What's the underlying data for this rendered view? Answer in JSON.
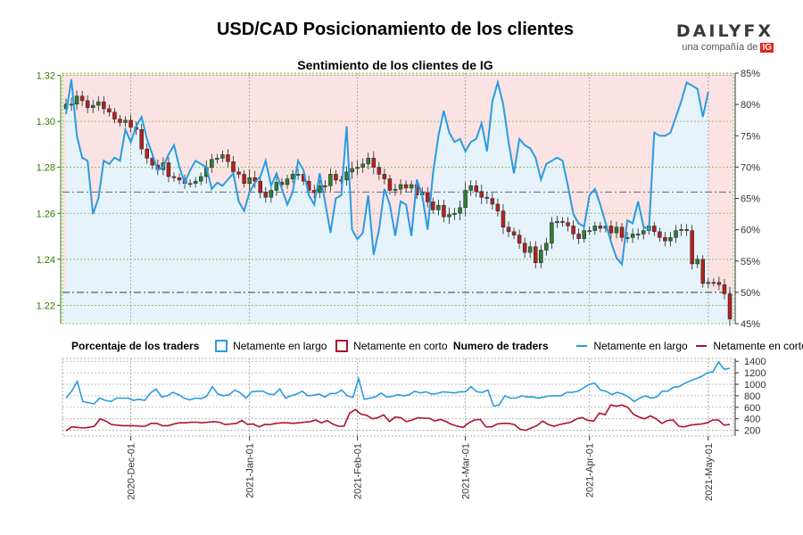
{
  "header": {
    "title": "USD/CAD Posicionamiento de los clientes",
    "subtitle": "Sentimiento de los clientes de IG",
    "brand": "DAILYFX",
    "brand_tagline": "una compañía de",
    "brand_ig": "IG"
  },
  "legend": {
    "pct_title": "Porcentaje de los traders",
    "pct_long": "Netamente en largo",
    "pct_short": "Netamente en corto",
    "num_title": "Numero de traders",
    "num_long": "Netamente en largo",
    "num_short": "Netamente en corto"
  },
  "colors": {
    "up": "#2e7d32",
    "down": "#b22222",
    "long": "#2b9be0",
    "short": "#b0102e",
    "long_fill": "#e6f3fb",
    "short_fill": "#fbe3e4",
    "axis_price": "#2e7d00"
  },
  "chart_data": [
    {
      "type": "candlestick",
      "title": "Sentimiento de los clientes de IG",
      "ylabel": "",
      "ylim": [
        1.212,
        1.321
      ],
      "yticks": [
        "1.32",
        "1.30",
        "1.28",
        "1.26",
        "1.24",
        "1.22"
      ],
      "dates": [
        "2020-11-13",
        "2020-11-16",
        "2020-11-17",
        "2020-11-18",
        "2020-11-19",
        "2020-11-20",
        "2020-11-23",
        "2020-11-24",
        "2020-11-25",
        "2020-11-26",
        "2020-11-27",
        "2020-11-30",
        "2020-12-01",
        "2020-12-02",
        "2020-12-03",
        "2020-12-04",
        "2020-12-07",
        "2020-12-08",
        "2020-12-09",
        "2020-12-10",
        "2020-12-11",
        "2020-12-14",
        "2020-12-15",
        "2020-12-16",
        "2020-12-17",
        "2020-12-18",
        "2020-12-21",
        "2020-12-22",
        "2020-12-23",
        "2020-12-24",
        "2020-12-28",
        "2020-12-29",
        "2020-12-30",
        "2020-12-31",
        "2021-01-04",
        "2021-01-05",
        "2021-01-06",
        "2021-01-07",
        "2021-01-08",
        "2021-01-11",
        "2021-01-12",
        "2021-01-13",
        "2021-01-14",
        "2021-01-15",
        "2021-01-18",
        "2021-01-19",
        "2021-01-20",
        "2021-01-21",
        "2021-01-22",
        "2021-01-25",
        "2021-01-26",
        "2021-01-27",
        "2021-01-28",
        "2021-01-29",
        "2021-02-01",
        "2021-02-02",
        "2021-02-03",
        "2021-02-04",
        "2021-02-05",
        "2021-02-08",
        "2021-02-09",
        "2021-02-10",
        "2021-02-11",
        "2021-02-12",
        "2021-02-15",
        "2021-02-16",
        "2021-02-17",
        "2021-02-18",
        "2021-02-19",
        "2021-02-22",
        "2021-02-23",
        "2021-02-24",
        "2021-02-25",
        "2021-02-26",
        "2021-03-01",
        "2021-03-02",
        "2021-03-03",
        "2021-03-04",
        "2021-03-05",
        "2021-03-08",
        "2021-03-09",
        "2021-03-10",
        "2021-03-11",
        "2021-03-12",
        "2021-03-15",
        "2021-03-16",
        "2021-03-17",
        "2021-03-18",
        "2021-03-19",
        "2021-03-22",
        "2021-03-23",
        "2021-03-24",
        "2021-03-25",
        "2021-03-26",
        "2021-03-29",
        "2021-03-30",
        "2021-03-31",
        "2021-04-01",
        "2021-04-02",
        "2021-04-05",
        "2021-04-06",
        "2021-04-07",
        "2021-04-08",
        "2021-04-09",
        "2021-04-12",
        "2021-04-13",
        "2021-04-14",
        "2021-04-15",
        "2021-04-16",
        "2021-04-19",
        "2021-04-20",
        "2021-04-21",
        "2021-04-22",
        "2021-04-23",
        "2021-04-26",
        "2021-04-27",
        "2021-04-28",
        "2021-04-29",
        "2021-04-30",
        "2021-05-03",
        "2021-05-04",
        "2021-05-05",
        "2021-05-06",
        "2021-05-07"
      ],
      "close": [
        1.3075,
        1.3075,
        1.311,
        1.309,
        1.306,
        1.307,
        1.3085,
        1.3055,
        1.304,
        1.301,
        1.2995,
        1.3005,
        1.2975,
        1.2965,
        1.288,
        1.284,
        1.281,
        1.279,
        1.282,
        1.276,
        1.2755,
        1.2745,
        1.273,
        1.273,
        1.274,
        1.276,
        1.28,
        1.2835,
        1.284,
        1.2855,
        1.2825,
        1.278,
        1.277,
        1.273,
        1.2755,
        1.274,
        1.269,
        1.267,
        1.27,
        1.2735,
        1.2725,
        1.275,
        1.277,
        1.277,
        1.274,
        1.27,
        1.269,
        1.272,
        1.272,
        1.277,
        1.2745,
        1.2745,
        1.278,
        1.2795,
        1.28,
        1.2815,
        1.284,
        1.28,
        1.277,
        1.275,
        1.27,
        1.2705,
        1.2725,
        1.271,
        1.2725,
        1.268,
        1.269,
        1.265,
        1.2615,
        1.2635,
        1.2585,
        1.2595,
        1.26,
        1.2625,
        1.27,
        1.272,
        1.2695,
        1.267,
        1.2665,
        1.264,
        1.261,
        1.254,
        1.252,
        1.2505,
        1.247,
        1.243,
        1.2455,
        1.2385,
        1.244,
        1.247,
        1.256,
        1.2565,
        1.256,
        1.2545,
        1.251,
        1.249,
        1.2525,
        1.2525,
        1.2545,
        1.2535,
        1.2545,
        1.2515,
        1.254,
        1.2495,
        1.2495,
        1.251,
        1.251,
        1.2525,
        1.2545,
        1.252,
        1.2495,
        1.248,
        1.2495,
        1.2525,
        1.253,
        1.2525,
        1.238,
        1.24,
        1.2295,
        1.23,
        1.23,
        1.229,
        1.225,
        1.214
      ],
      "volatility": [
        0.004,
        0.005,
        0.004,
        0.004,
        0.004,
        0.004,
        0.004,
        0.004,
        0.003,
        0.003,
        0.003,
        0.003,
        0.004,
        0.004,
        0.004,
        0.004,
        0.003,
        0.004,
        0.004,
        0.004,
        0.003,
        0.003,
        0.004,
        0.003,
        0.003,
        0.003,
        0.005,
        0.004,
        0.003,
        0.003,
        0.004,
        0.004,
        0.003,
        0.003,
        0.006,
        0.005,
        0.004,
        0.004,
        0.004,
        0.004,
        0.003,
        0.003,
        0.003,
        0.004,
        0.003,
        0.004,
        0.004,
        0.004,
        0.004,
        0.004,
        0.003,
        0.003,
        0.004,
        0.005,
        0.005,
        0.004,
        0.004,
        0.005,
        0.004,
        0.004,
        0.003,
        0.004,
        0.004,
        0.003,
        0.003,
        0.003,
        0.004,
        0.004,
        0.003,
        0.004,
        0.004,
        0.005,
        0.004,
        0.005,
        0.006,
        0.004,
        0.004,
        0.005,
        0.004,
        0.004,
        0.004,
        0.005,
        0.004,
        0.003,
        0.004,
        0.004,
        0.004,
        0.004,
        0.004,
        0.004,
        0.004,
        0.004,
        0.003,
        0.004,
        0.004,
        0.004,
        0.003,
        0.003,
        0.003,
        0.003,
        0.003,
        0.004,
        0.004,
        0.003,
        0.004,
        0.004,
        0.004,
        0.004,
        0.003,
        0.003,
        0.003,
        0.004,
        0.004,
        0.004,
        0.004,
        0.004,
        0.004,
        0.003,
        0.003,
        0.003,
        0.003,
        0.004,
        0.004,
        0.005
      ]
    },
    {
      "type": "line",
      "title": "Porcentaje de los traders",
      "ylim": [
        45,
        85
      ],
      "yticks": [
        "85%",
        "80%",
        "75%",
        "70%",
        "65%",
        "60%",
        "55%",
        "50%",
        "45%"
      ],
      "reference_levels": [
        66,
        50
      ],
      "series": [
        {
          "name": "Netamente en largo",
          "values": [
            78.5,
            84.0,
            75.0,
            71.5,
            71.0,
            62.5,
            65.0,
            71.0,
            70.5,
            71.5,
            71.0,
            76.0,
            74.0,
            76.5,
            78.0,
            74.5,
            72.0,
            69.5,
            70.0,
            72.0,
            73.5,
            70.0,
            67.5,
            69.5,
            71.0,
            70.5,
            70.0,
            66.5,
            67.5,
            67.0,
            68.0,
            69.0,
            64.5,
            63.0,
            66.0,
            67.5,
            68.5,
            71.0,
            67.0,
            69.0,
            66.5,
            64.0,
            66.0,
            71.0,
            69.5,
            65.5,
            64.0,
            69.0,
            64.5,
            59.5,
            65.0,
            65.5,
            76.5,
            60.0,
            58.5,
            59.5,
            65.5,
            56.0,
            60.0,
            66.5,
            64.0,
            59.0,
            64.5,
            64.0,
            59.0,
            68.0,
            65.5,
            60.0,
            69.0,
            75.0,
            79.0,
            75.5,
            74.0,
            74.5,
            72.5,
            74.0,
            74.5,
            77.0,
            72.5,
            80.5,
            83.5,
            80.0,
            74.0,
            69.0,
            74.5,
            73.5,
            73.0,
            71.5,
            68.0,
            70.5,
            71.0,
            71.5,
            71.0,
            67.0,
            62.5,
            61.0,
            60.5,
            65.5,
            66.5,
            64.0,
            61.0,
            58.0,
            55.5,
            54.5,
            61.5,
            61.0,
            64.5,
            60.5,
            60.0,
            75.5,
            75.0,
            75.0,
            75.5,
            78.0,
            80.5,
            83.5,
            83.0,
            82.5,
            78.0,
            82.0
          ]
        },
        {
          "name": "Netamente en corto",
          "values": []
        }
      ]
    },
    {
      "type": "line",
      "title": "Numero de traders",
      "ylim": [
        100,
        1450
      ],
      "yticks": [
        "1400",
        "1200",
        "1000",
        "800",
        "600",
        "400",
        "200"
      ],
      "xticks": [
        "2020-Dec-01",
        "2021-Jan-01",
        "2021-Feb-01",
        "2021-Mar-01",
        "2021-Apr-01",
        "2021-May-01"
      ],
      "series": [
        {
          "name": "Netamente en largo",
          "values": [
            760,
            880,
            1050,
            700,
            680,
            660,
            760,
            720,
            700,
            760,
            760,
            760,
            720,
            740,
            720,
            850,
            920,
            780,
            800,
            860,
            820,
            760,
            730,
            760,
            750,
            790,
            960,
            830,
            800,
            820,
            900,
            850,
            760,
            870,
            880,
            880,
            830,
            820,
            920,
            760,
            800,
            830,
            880,
            800,
            810,
            830,
            780,
            840,
            840,
            900,
            800,
            770,
            1100,
            740,
            760,
            780,
            850,
            780,
            790,
            820,
            800,
            820,
            880,
            850,
            870,
            830,
            840,
            870,
            860,
            850,
            870,
            870,
            960,
            870,
            860,
            900,
            620,
            640,
            800,
            760,
            760,
            800,
            780,
            780,
            760,
            780,
            800,
            800,
            800,
            860,
            860,
            880,
            940,
            1000,
            1020,
            900,
            880,
            820,
            860,
            830,
            780,
            700,
            760,
            800,
            760,
            780,
            880,
            880,
            950,
            960,
            1020,
            1060,
            1100,
            1140,
            1200,
            1220,
            1390,
            1260,
            1280
          ]
        },
        {
          "name": "Netamente en corto",
          "values": [
            190,
            260,
            250,
            240,
            250,
            270,
            400,
            360,
            300,
            290,
            280,
            280,
            280,
            270,
            270,
            320,
            320,
            280,
            280,
            310,
            330,
            330,
            340,
            340,
            330,
            340,
            350,
            340,
            300,
            310,
            320,
            370,
            300,
            310,
            260,
            300,
            300,
            320,
            330,
            330,
            320,
            330,
            340,
            350,
            380,
            330,
            370,
            310,
            270,
            270,
            500,
            560,
            480,
            460,
            400,
            420,
            470,
            350,
            430,
            420,
            350,
            380,
            420,
            410,
            410,
            360,
            390,
            350,
            300,
            270,
            250,
            330,
            380,
            390,
            260,
            260,
            310,
            320,
            320,
            300,
            220,
            200,
            240,
            280,
            360,
            300,
            270,
            300,
            320,
            340,
            400,
            420,
            370,
            360,
            500,
            470,
            640,
            620,
            640,
            600,
            480,
            430,
            400,
            450,
            400,
            320,
            370,
            380,
            270,
            260,
            290,
            300,
            310,
            330,
            380,
            380,
            290,
            300
          ]
        }
      ]
    }
  ]
}
